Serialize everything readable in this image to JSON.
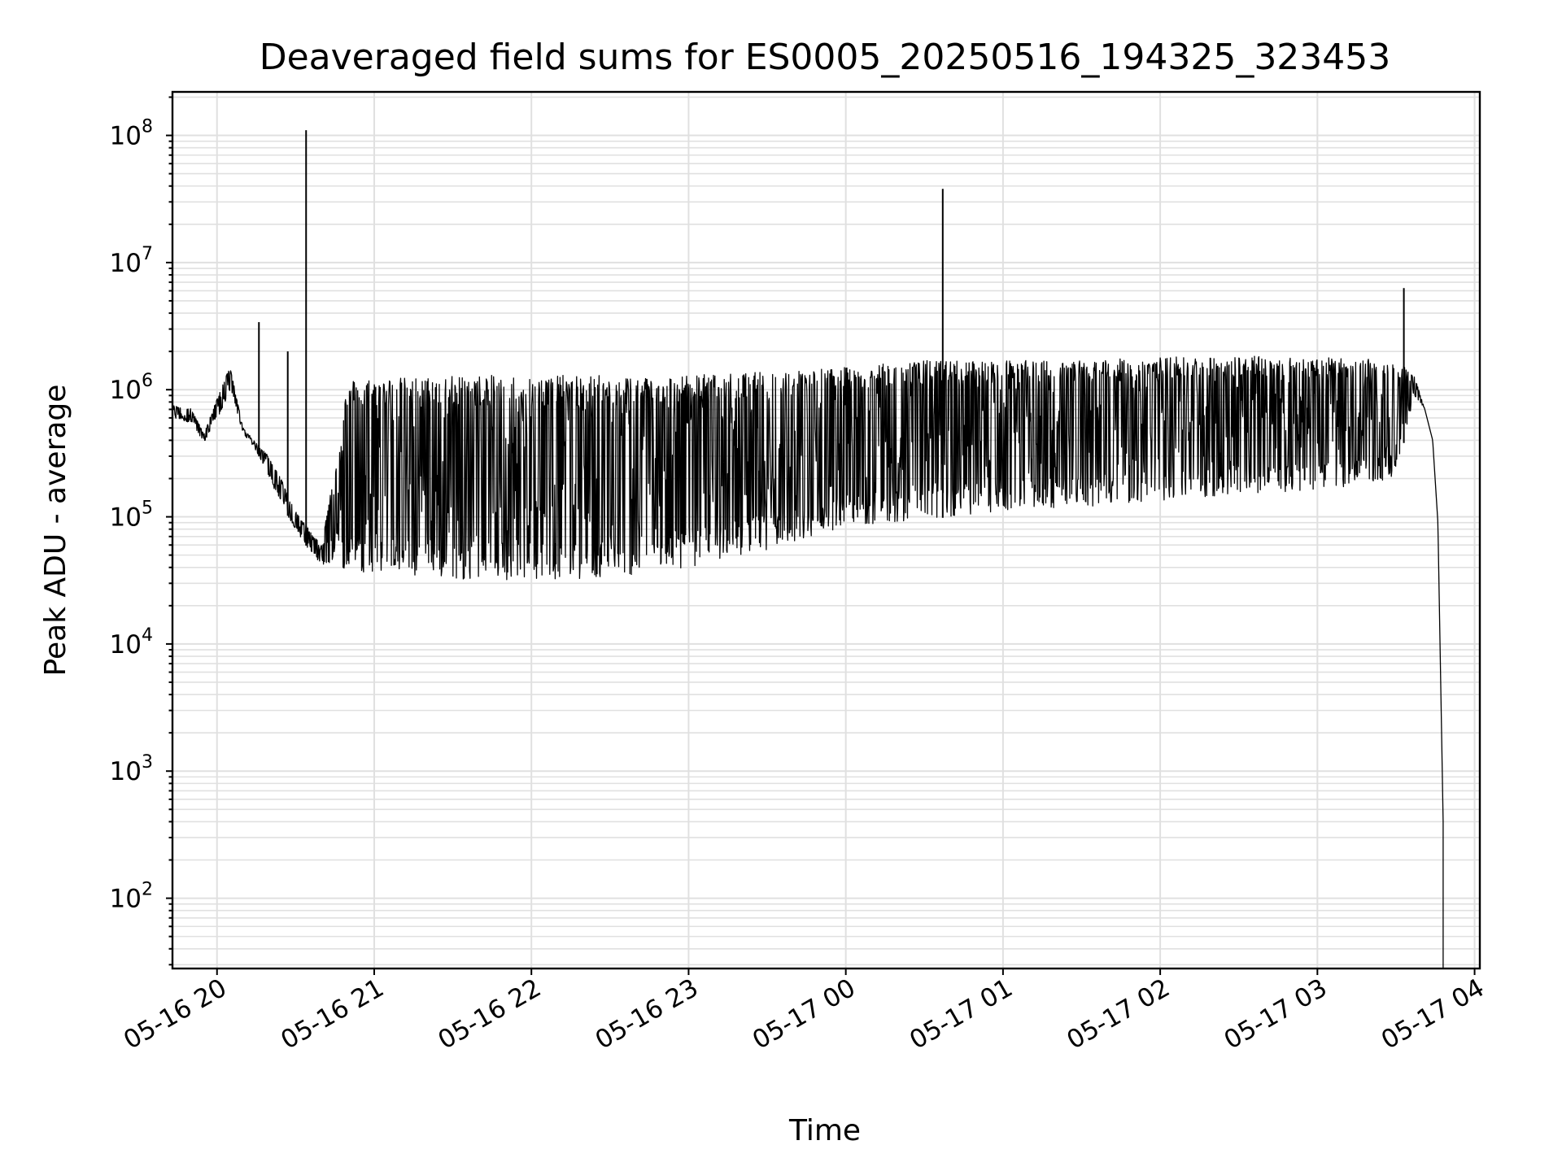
{
  "chart_data": {
    "type": "line",
    "title": "Deaveraged field sums for ES0005_20250516_194325_323453",
    "xlabel": "Time",
    "ylabel": "Peak ADU - average",
    "yscale": "log",
    "grid": true,
    "line_color": "#000000",
    "grid_color": "#e0e0e0",
    "x_ticks": [
      "05-16 20",
      "05-16 21",
      "05-16 22",
      "05-16 23",
      "05-17 00",
      "05-17 01",
      "05-17 02",
      "05-17 03",
      "05-17 04"
    ],
    "x_range": [
      "2025-05-16 19:43",
      "2025-05-17 04:02"
    ],
    "y_ticks": [
      {
        "base": "10",
        "exp": "2"
      },
      {
        "base": "10",
        "exp": "3"
      },
      {
        "base": "10",
        "exp": "4"
      },
      {
        "base": "10",
        "exp": "5"
      },
      {
        "base": "10",
        "exp": "6"
      },
      {
        "base": "10",
        "exp": "7"
      },
      {
        "base": "10",
        "exp": "8"
      }
    ],
    "ylim": [
      28,
      220000000
    ],
    "series": [
      {
        "envelope": {
          "x": [
            "2025-05-16 19:43",
            "2025-05-16 19:50",
            "2025-05-16 19:55",
            "2025-05-16 20:02",
            "2025-05-16 20:05",
            "2025-05-16 20:10",
            "2025-05-16 20:15",
            "2025-05-16 20:20",
            "2025-05-16 20:25",
            "2025-05-16 20:30",
            "2025-05-16 20:35",
            "2025-05-16 20:40",
            "2025-05-16 20:50",
            "2025-05-16 21:00",
            "2025-05-16 21:15",
            "2025-05-16 21:30",
            "2025-05-16 22:00",
            "2025-05-16 22:30",
            "2025-05-16 23:00",
            "2025-05-16 23:20",
            "2025-05-16 23:40",
            "2025-05-17 00:00",
            "2025-05-17 00:30",
            "2025-05-17 01:00",
            "2025-05-17 01:30",
            "2025-05-17 02:00",
            "2025-05-17 02:30",
            "2025-05-17 03:00",
            "2025-05-17 03:30",
            "2025-05-17 03:37",
            "2025-05-17 03:41",
            "2025-05-17 03:44",
            "2025-05-17 03:46",
            "2025-05-17 03:48"
          ],
          "high": [
            750000,
            720000,
            450000,
            1100000,
            1500000,
            500000,
            380000,
            300000,
            190000,
            110000,
            80000,
            60000,
            1200000,
            1250000,
            1250000,
            1300000,
            1300000,
            1300000,
            1300000,
            1350000,
            1450000,
            1500000,
            1700000,
            1700000,
            1700000,
            1800000,
            1850000,
            1800000,
            1700000,
            1300000,
            700000,
            400000,
            90000,
            400
          ],
          "low": [
            600000,
            550000,
            380000,
            700000,
            1000000,
            450000,
            330000,
            200000,
            120000,
            80000,
            55000,
            42000,
            38000,
            36000,
            33000,
            32000,
            32000,
            33000,
            40000,
            50000,
            60000,
            85000,
            95000,
            110000,
            120000,
            130000,
            150000,
            160000,
            200000,
            900000,
            700000,
            400000,
            90000,
            400
          ]
        },
        "spikes": [
          {
            "x": "2025-05-16 20:34",
            "y": 110000000
          },
          {
            "x": "2025-05-17 00:37",
            "y": 38000000
          },
          {
            "x": "2025-05-17 03:33",
            "y": 6300000
          },
          {
            "x": "2025-05-16 20:16",
            "y": 3400000
          },
          {
            "x": "2025-05-16 20:27",
            "y": 2000000
          }
        ]
      }
    ]
  }
}
